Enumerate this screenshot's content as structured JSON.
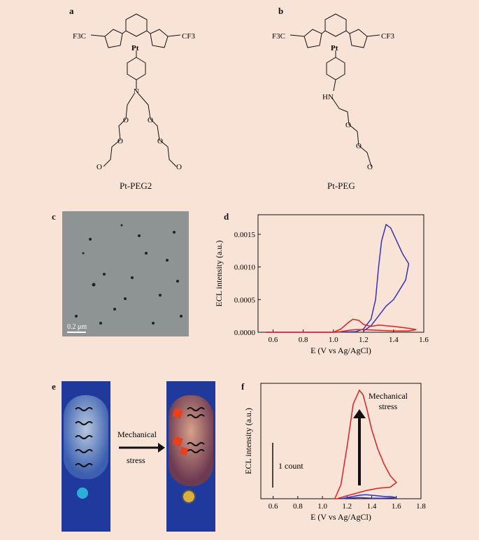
{
  "panels": {
    "a": {
      "letter": "a",
      "caption": "Pt-PEG2",
      "labels": {
        "cf3_left": "F3C",
        "cf3_right": "CF3",
        "pt": "Pt",
        "n": "N",
        "o": "O"
      }
    },
    "b": {
      "letter": "b",
      "caption": "Pt-PEG",
      "labels": {
        "cf3_left": "F3C",
        "cf3_right": "CF3",
        "pt": "Pt",
        "hn": "HN",
        "o": "O"
      }
    },
    "c": {
      "letter": "c",
      "scale_bar": "0.2 μm"
    },
    "d": {
      "letter": "d"
    },
    "e": {
      "letter": "e",
      "arrow_label_1": "Mechanical",
      "arrow_label_2": "stress"
    },
    "f": {
      "letter": "f",
      "scale_label": "1 count",
      "annotation": "Mechanical\nstress"
    }
  },
  "chart_data": [
    {
      "type": "line",
      "panel": "d",
      "xlabel": "E (V vs Ag/AgCl)",
      "ylabel": "ECL intensity (a.u.)",
      "xlim": [
        0.5,
        1.6
      ],
      "ylim": [
        0,
        0.0018
      ],
      "xticks": [
        "0.6",
        "0.8",
        "1.0",
        "1.2",
        "1.4",
        "1.6"
      ],
      "yticks": [
        "0.0000",
        "0.0005",
        "0.0010",
        "0.0015"
      ],
      "ytick_values": [
        0,
        0.0005,
        0.001,
        0.0015
      ],
      "xtick_values": [
        0.6,
        0.8,
        1.0,
        1.2,
        1.4,
        1.6
      ],
      "grid": false,
      "series": [
        {
          "color": "#3333bb",
          "x": [
            0.55,
            1.0,
            1.15,
            1.2,
            1.25,
            1.28,
            1.3,
            1.32,
            1.35,
            1.38,
            1.42,
            1.46,
            1.5,
            1.48,
            1.44,
            1.4,
            1.35,
            1.3,
            1.25,
            1.2
          ],
          "y": [
            0,
            0,
            1e-05,
            5e-05,
            0.0002,
            0.0005,
            0.001,
            0.0014,
            0.00165,
            0.0016,
            0.0014,
            0.0012,
            0.00105,
            0.0008,
            0.00065,
            0.0005,
            0.0004,
            0.00025,
            0.0001,
            2e-05
          ]
        },
        {
          "color": "#dd2222",
          "x": [
            0.55,
            1.0,
            1.05,
            1.1,
            1.13,
            1.17,
            1.2,
            1.25,
            1.3,
            1.4,
            1.5,
            1.55,
            1.5,
            1.4,
            1.3,
            1.2,
            1.15,
            1.1,
            1.05,
            1.0
          ],
          "y": [
            0,
            0,
            5e-05,
            0.00015,
            0.0002,
            0.00018,
            0.00012,
            9e-05,
            0.00011,
            9e-05,
            6e-05,
            4e-05,
            2e-05,
            2e-05,
            3e-05,
            4e-05,
            4e-05,
            3e-05,
            1e-05,
            0
          ]
        }
      ]
    },
    {
      "type": "line",
      "panel": "f",
      "xlabel": "E (V vs Ag/AgCl)",
      "ylabel": "ECL intensity (a.u.)",
      "xlim": [
        0.5,
        1.8
      ],
      "ylim": [
        0,
        1
      ],
      "xticks": [
        "0.6",
        "0.8",
        "1.0",
        "1.2",
        "1.4",
        "1.6",
        "1.8"
      ],
      "xtick_values": [
        0.6,
        0.8,
        1.0,
        1.2,
        1.4,
        1.6,
        1.8
      ],
      "grid": false,
      "series": [
        {
          "color": "#dd2222",
          "x": [
            1.1,
            1.15,
            1.2,
            1.25,
            1.3,
            1.33,
            1.36,
            1.4,
            1.45,
            1.5,
            1.55,
            1.6,
            1.55,
            1.45,
            1.35,
            1.25,
            1.18,
            1.12
          ],
          "y": [
            0,
            0.12,
            0.45,
            0.82,
            0.94,
            0.9,
            0.78,
            0.6,
            0.43,
            0.3,
            0.2,
            0.14,
            0.1,
            0.09,
            0.07,
            0.04,
            0.02,
            0
          ],
          "closed": true
        },
        {
          "color": "#3333bb",
          "x": [
            1.15,
            1.2,
            1.25,
            1.3,
            1.35,
            1.4,
            1.45,
            1.5,
            1.55,
            1.6,
            1.5,
            1.4,
            1.3,
            1.2
          ],
          "y": [
            0,
            0.01,
            0.02,
            0.03,
            0.035,
            0.03,
            0.025,
            0.02,
            0.02,
            0.01,
            0.005,
            0.005,
            0.01,
            0.005
          ],
          "closed": true
        }
      ]
    }
  ]
}
